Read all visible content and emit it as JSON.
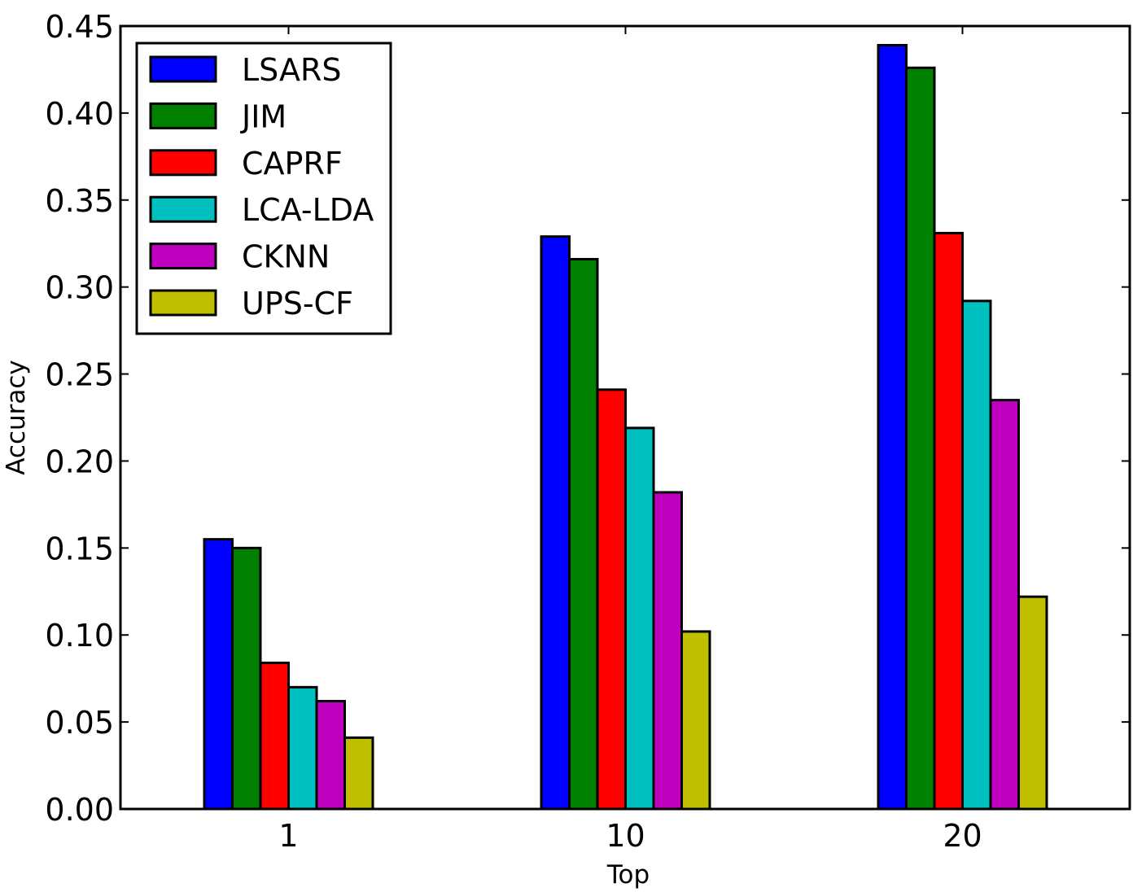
{
  "chart_data": {
    "type": "bar",
    "title": "",
    "xlabel": "Top",
    "ylabel": "Accuracy",
    "categories": [
      "1",
      "10",
      "20"
    ],
    "ylim": [
      0,
      0.45
    ],
    "yticks": [
      "0.00",
      "0.05",
      "0.10",
      "0.15",
      "0.20",
      "0.25",
      "0.30",
      "0.35",
      "0.40",
      "0.45"
    ],
    "ytick_values": [
      0,
      0.05,
      0.1,
      0.15,
      0.2,
      0.25,
      0.3,
      0.35,
      0.4,
      0.45
    ],
    "legend_position": "top-left",
    "grid": false,
    "series": [
      {
        "name": "LSARS",
        "color": "#0000ff",
        "values": [
          0.155,
          0.329,
          0.439
        ]
      },
      {
        "name": "JIM",
        "color": "#008000",
        "values": [
          0.15,
          0.316,
          0.426
        ]
      },
      {
        "name": "CAPRF",
        "color": "#ff0000",
        "values": [
          0.084,
          0.241,
          0.331
        ]
      },
      {
        "name": "LCA-LDA",
        "color": "#00bfbf",
        "values": [
          0.07,
          0.219,
          0.292
        ]
      },
      {
        "name": "CKNN",
        "color": "#bf00bf",
        "values": [
          0.062,
          0.182,
          0.235
        ]
      },
      {
        "name": "UPS-CF",
        "color": "#bfbf00",
        "values": [
          0.041,
          0.102,
          0.122
        ]
      }
    ]
  }
}
